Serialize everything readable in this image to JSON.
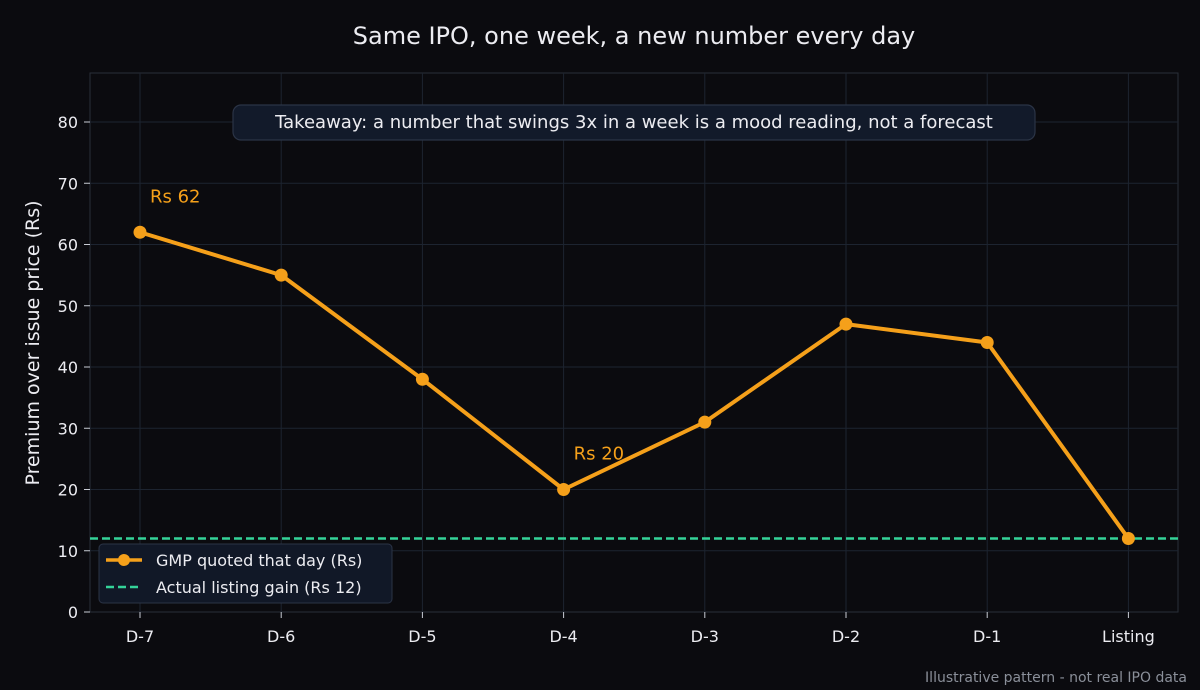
{
  "chart_data": {
    "type": "line",
    "title": "Same IPO, one week, a new number every day",
    "xlabel": "",
    "ylabel": "Premium over issue price (Rs)",
    "categories": [
      "D-7",
      "D-6",
      "D-5",
      "D-4",
      "D-3",
      "D-2",
      "D-1",
      "Listing"
    ],
    "ylim": [
      0,
      88
    ],
    "yticks": [
      0,
      10,
      20,
      30,
      40,
      50,
      60,
      70,
      80
    ],
    "grid": true,
    "series": [
      {
        "name": "GMP quoted that day (Rs)",
        "values": [
          62,
          55,
          38,
          20,
          31,
          47,
          44,
          12
        ],
        "color": "#f5a01a"
      }
    ],
    "reference_line": {
      "name": "Actual listing gain (Rs 12)",
      "value": 12,
      "color": "#34d399",
      "style": "dashed"
    },
    "annotations": [
      {
        "text": "Rs 62",
        "category": "D-7",
        "value": 62
      },
      {
        "text": "Rs 20",
        "category": "D-4",
        "value": 20
      }
    ],
    "takeaway": "Takeaway: a number that swings 3x in a week is a mood reading, not a forecast",
    "legend_position": "bottom-left",
    "footnote": "Illustrative pattern - not real IPO data"
  }
}
